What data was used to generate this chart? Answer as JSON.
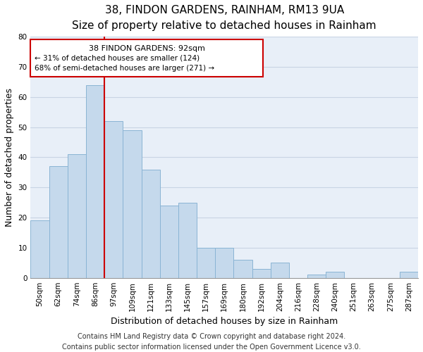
{
  "title": "38, FINDON GARDENS, RAINHAM, RM13 9UA",
  "subtitle": "Size of property relative to detached houses in Rainham",
  "xlabel": "Distribution of detached houses by size in Rainham",
  "ylabel": "Number of detached properties",
  "categories": [
    "50sqm",
    "62sqm",
    "74sqm",
    "86sqm",
    "97sqm",
    "109sqm",
    "121sqm",
    "133sqm",
    "145sqm",
    "157sqm",
    "169sqm",
    "180sqm",
    "192sqm",
    "204sqm",
    "216sqm",
    "228sqm",
    "240sqm",
    "251sqm",
    "263sqm",
    "275sqm",
    "287sqm"
  ],
  "values": [
    19,
    37,
    41,
    64,
    52,
    49,
    36,
    24,
    25,
    10,
    10,
    6,
    3,
    5,
    0,
    1,
    2,
    0,
    0,
    0,
    2
  ],
  "bar_color": "#c5d9ec",
  "bar_edge_color": "#8ab4d4",
  "red_line_index": 3.5,
  "highlight_line_color": "#cc0000",
  "ylim": [
    0,
    80
  ],
  "yticks": [
    0,
    10,
    20,
    30,
    40,
    50,
    60,
    70,
    80
  ],
  "ann_line1": "38 FINDON GARDENS: 92sqm",
  "ann_line2": "← 31% of detached houses are smaller (124)",
  "ann_line3": "68% of semi-detached houses are larger (271) →",
  "footer_text": "Contains HM Land Registry data © Crown copyright and database right 2024.\nContains public sector information licensed under the Open Government Licence v3.0.",
  "background_color": "#ffffff",
  "plot_bg_color": "#e8eff8",
  "grid_color": "#c8d4e4",
  "title_fontsize": 11,
  "subtitle_fontsize": 9.5,
  "axis_label_fontsize": 9,
  "tick_fontsize": 7.5,
  "footer_fontsize": 7
}
